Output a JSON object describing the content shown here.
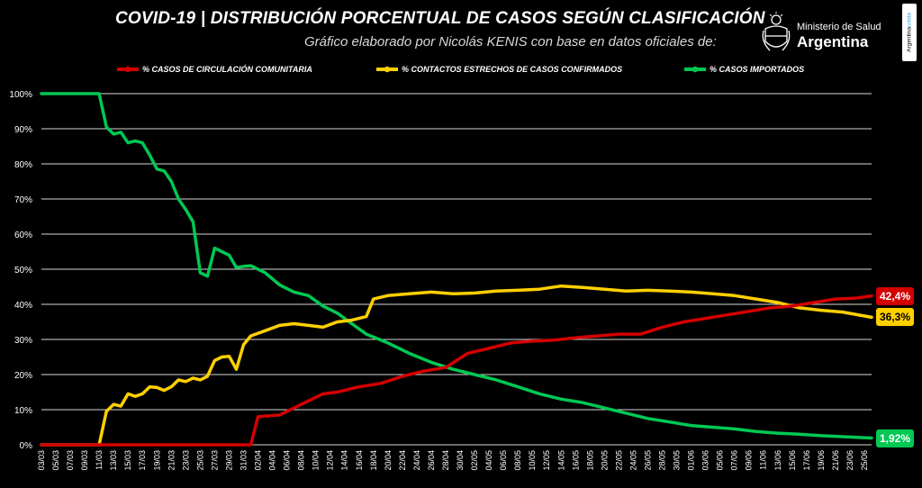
{
  "header": {
    "title": "COVID-19  |  DISTRIBUCIÓN PORCENTUAL DE CASOS SEGÚN CLASIFICACIÓN",
    "subtitle": "Gráfico elaborado por Nicolás KENIS con base en datos oficiales de:",
    "ministry": "Ministerio de Salud",
    "country": "Argentina",
    "side_tag_a": "Argentina",
    "side_tag_b": "unida"
  },
  "colors": {
    "community": "#d40000",
    "contacts": "#ffd000",
    "imported": "#00c853",
    "grid": "#d9d9d9",
    "background": "#000000"
  },
  "chart_data": {
    "type": "line",
    "title": "COVID-19 | DISTRIBUCIÓN PORCENTUAL DE CASOS SEGÚN CLASIFICACIÓN",
    "xlabel": "",
    "ylabel": "",
    "ylim": [
      0,
      100
    ],
    "grid": true,
    "legend_position": "top",
    "y_ticks": [
      "0%",
      "10%",
      "20%",
      "30%",
      "40%",
      "50%",
      "60%",
      "70%",
      "80%",
      "90%",
      "100%"
    ],
    "x_tick_labels": [
      "03/03",
      "05/03",
      "07/03",
      "09/03",
      "11/03",
      "13/03",
      "15/03",
      "17/03",
      "19/03",
      "21/03",
      "23/03",
      "25/03",
      "27/03",
      "29/03",
      "31/03",
      "02/04",
      "04/04",
      "06/04",
      "08/04",
      "10/04",
      "12/04",
      "14/04",
      "16/04",
      "18/04",
      "20/04",
      "22/04",
      "24/04",
      "26/04",
      "28/04",
      "30/04",
      "02/05",
      "04/05",
      "06/05",
      "08/05",
      "10/05",
      "12/05",
      "14/05",
      "16/05",
      "18/05",
      "20/05",
      "22/05",
      "24/05",
      "26/05",
      "28/05",
      "30/05",
      "01/06",
      "03/06",
      "05/06",
      "07/06",
      "09/06",
      "11/06",
      "13/06",
      "15/06",
      "17/06",
      "19/06",
      "21/06",
      "23/06",
      "25/06"
    ],
    "x_start": "03/03",
    "x_end": "26/06",
    "series": [
      {
        "name": "% CASOS DE CIRCULACIÓN COMUNITARIA",
        "color": "#d40000",
        "end_label": "42,4%",
        "points": [
          [
            "03/03",
            0
          ],
          [
            "01/04",
            0
          ],
          [
            "02/04",
            8
          ],
          [
            "05/04",
            8.5
          ],
          [
            "08/04",
            11.5
          ],
          [
            "11/04",
            14.5
          ],
          [
            "13/04",
            15
          ],
          [
            "16/04",
            16.5
          ],
          [
            "19/04",
            17.5
          ],
          [
            "22/04",
            19.5
          ],
          [
            "25/04",
            21
          ],
          [
            "28/04",
            22
          ],
          [
            "01/05",
            26
          ],
          [
            "04/05",
            27.5
          ],
          [
            "07/05",
            29
          ],
          [
            "10/05",
            29.5
          ],
          [
            "13/05",
            29.8
          ],
          [
            "16/05",
            30.5
          ],
          [
            "19/05",
            31
          ],
          [
            "22/05",
            31.5
          ],
          [
            "25/05",
            31.5
          ],
          [
            "28/05",
            33.5
          ],
          [
            "31/05",
            35
          ],
          [
            "03/06",
            36
          ],
          [
            "06/06",
            37
          ],
          [
            "09/06",
            38
          ],
          [
            "12/06",
            39
          ],
          [
            "15/06",
            39.5
          ],
          [
            "18/06",
            40.5
          ],
          [
            "21/06",
            41.5
          ],
          [
            "24/06",
            41.8
          ],
          [
            "26/06",
            42.4
          ]
        ]
      },
      {
        "name": "% CONTACTOS ESTRECHOS DE CASOS CONFIRMADOS",
        "color": "#ffd000",
        "end_label": "36,3%",
        "points": [
          [
            "03/03",
            0
          ],
          [
            "11/03",
            0
          ],
          [
            "12/03",
            9.5
          ],
          [
            "13/03",
            11.5
          ],
          [
            "14/03",
            11
          ],
          [
            "15/03",
            14.5
          ],
          [
            "16/03",
            13.8
          ],
          [
            "17/03",
            14.5
          ],
          [
            "18/03",
            16.5
          ],
          [
            "19/03",
            16.3
          ],
          [
            "20/03",
            15.5
          ],
          [
            "21/03",
            16.5
          ],
          [
            "22/03",
            18.5
          ],
          [
            "23/03",
            18
          ],
          [
            "24/03",
            19
          ],
          [
            "25/03",
            18.5
          ],
          [
            "26/03",
            19.5
          ],
          [
            "27/03",
            24
          ],
          [
            "28/03",
            25
          ],
          [
            "29/03",
            25.2
          ],
          [
            "30/03",
            21.5
          ],
          [
            "31/03",
            28.5
          ],
          [
            "01/04",
            31
          ],
          [
            "03/04",
            32.5
          ],
          [
            "05/04",
            34
          ],
          [
            "07/04",
            34.5
          ],
          [
            "09/04",
            34
          ],
          [
            "11/04",
            33.5
          ],
          [
            "13/04",
            35
          ],
          [
            "15/04",
            35.5
          ],
          [
            "17/04",
            36.5
          ],
          [
            "18/04",
            41.5
          ],
          [
            "20/04",
            42.5
          ],
          [
            "23/04",
            43
          ],
          [
            "26/04",
            43.5
          ],
          [
            "29/04",
            43
          ],
          [
            "02/05",
            43.2
          ],
          [
            "05/05",
            43.8
          ],
          [
            "08/05",
            44
          ],
          [
            "11/05",
            44.3
          ],
          [
            "14/05",
            45.2
          ],
          [
            "17/05",
            44.8
          ],
          [
            "20/05",
            44.3
          ],
          [
            "23/05",
            43.8
          ],
          [
            "26/05",
            44
          ],
          [
            "29/05",
            43.8
          ],
          [
            "01/06",
            43.5
          ],
          [
            "04/06",
            43
          ],
          [
            "07/06",
            42.5
          ],
          [
            "10/06",
            41.5
          ],
          [
            "13/06",
            40.5
          ],
          [
            "16/06",
            39
          ],
          [
            "19/06",
            38.3
          ],
          [
            "22/06",
            37.8
          ],
          [
            "26/06",
            36.3
          ]
        ]
      },
      {
        "name": "% CASOS IMPORTADOS",
        "color": "#00c853",
        "end_label": "1,92%",
        "points": [
          [
            "03/03",
            100
          ],
          [
            "11/03",
            100
          ],
          [
            "12/03",
            90.5
          ],
          [
            "13/03",
            88.5
          ],
          [
            "14/03",
            89
          ],
          [
            "15/03",
            86
          ],
          [
            "16/03",
            86.5
          ],
          [
            "17/03",
            86
          ],
          [
            "18/03",
            82.5
          ],
          [
            "19/03",
            78.5
          ],
          [
            "20/03",
            78
          ],
          [
            "21/03",
            75
          ],
          [
            "22/03",
            70
          ],
          [
            "23/03",
            67
          ],
          [
            "24/03",
            63.5
          ],
          [
            "25/03",
            49
          ],
          [
            "26/03",
            48
          ],
          [
            "27/03",
            56
          ],
          [
            "28/03",
            55
          ],
          [
            "29/03",
            54
          ],
          [
            "30/03",
            50.5
          ],
          [
            "31/03",
            50.8
          ],
          [
            "01/04",
            51
          ],
          [
            "03/04",
            49
          ],
          [
            "05/04",
            45.5
          ],
          [
            "07/04",
            43.5
          ],
          [
            "09/04",
            42.5
          ],
          [
            "11/04",
            39.5
          ],
          [
            "13/04",
            37.5
          ],
          [
            "15/04",
            34.5
          ],
          [
            "17/04",
            31.5
          ],
          [
            "20/04",
            29
          ],
          [
            "23/04",
            26
          ],
          [
            "26/04",
            23.5
          ],
          [
            "29/04",
            21.5
          ],
          [
            "02/05",
            20
          ],
          [
            "05/05",
            18.5
          ],
          [
            "08/05",
            16.5
          ],
          [
            "11/05",
            14.5
          ],
          [
            "14/05",
            13
          ],
          [
            "17/05",
            12
          ],
          [
            "20/05",
            10.5
          ],
          [
            "23/05",
            9
          ],
          [
            "26/05",
            7.5
          ],
          [
            "29/05",
            6.5
          ],
          [
            "01/06",
            5.5
          ],
          [
            "04/06",
            5
          ],
          [
            "07/06",
            4.5
          ],
          [
            "10/06",
            3.8
          ],
          [
            "13/06",
            3.3
          ],
          [
            "16/06",
            3
          ],
          [
            "19/06",
            2.6
          ],
          [
            "22/06",
            2.3
          ],
          [
            "26/06",
            1.92
          ]
        ]
      }
    ]
  }
}
